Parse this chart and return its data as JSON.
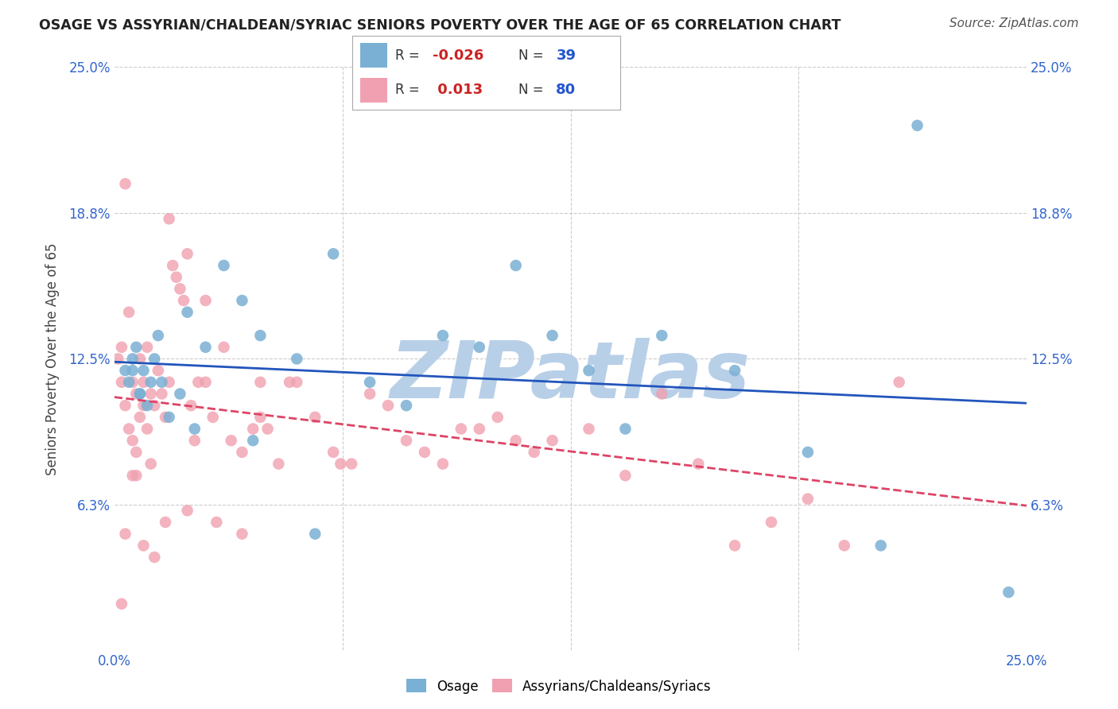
{
  "title": "OSAGE VS ASSYRIAN/CHALDEAN/SYRIAC SENIORS POVERTY OVER THE AGE OF 65 CORRELATION CHART",
  "source_text": "Source: ZipAtlas.com",
  "ylabel": "Seniors Poverty Over the Age of 65",
  "xlim": [
    0.0,
    25.0
  ],
  "ylim": [
    0.0,
    25.0
  ],
  "x_tick_labels": [
    "0.0%",
    "25.0%"
  ],
  "y_tick_values": [
    6.25,
    12.5,
    18.75,
    25.0
  ],
  "y_tick_labels": [
    "6.3%",
    "12.5%",
    "18.8%",
    "25.0%"
  ],
  "grid_color": "#cccccc",
  "background_color": "#ffffff",
  "watermark": "ZIPatlas",
  "watermark_color": "#b8cfe8",
  "legend_label_osage": "Osage",
  "legend_label_acs": "Assyrians/Chaldeans/Syriacs",
  "osage_color": "#7ab0d4",
  "acs_color": "#f0a0b0",
  "osage_line_color": "#2255bb",
  "acs_line_color": "#dd4466",
  "osage_R": -0.026,
  "acs_R": 0.013,
  "osage_N": 39,
  "acs_N": 80,
  "osage_x": [
    0.3,
    0.4,
    0.5,
    0.6,
    0.7,
    0.8,
    0.9,
    1.0,
    1.1,
    1.2,
    1.5,
    1.8,
    2.0,
    2.5,
    3.0,
    3.5,
    4.0,
    5.0,
    6.0,
    7.0,
    8.0,
    9.0,
    10.0,
    11.0,
    12.0,
    13.0,
    14.0,
    15.0,
    17.0,
    19.0,
    21.0,
    22.0,
    0.5,
    0.7,
    1.3,
    2.2,
    3.8,
    5.5,
    24.5
  ],
  "osage_y": [
    12.0,
    11.5,
    12.5,
    13.0,
    11.0,
    12.0,
    10.5,
    11.5,
    12.5,
    13.5,
    10.0,
    11.0,
    14.5,
    13.0,
    16.5,
    15.0,
    13.5,
    12.5,
    17.0,
    11.5,
    10.5,
    13.5,
    13.0,
    16.5,
    13.5,
    12.0,
    9.5,
    13.5,
    12.0,
    8.5,
    4.5,
    22.5,
    12.0,
    11.0,
    11.5,
    9.5,
    9.0,
    5.0,
    2.5
  ],
  "acs_x": [
    0.1,
    0.2,
    0.2,
    0.3,
    0.3,
    0.4,
    0.4,
    0.5,
    0.5,
    0.6,
    0.6,
    0.7,
    0.7,
    0.8,
    0.8,
    0.9,
    0.9,
    1.0,
    1.0,
    1.1,
    1.2,
    1.3,
    1.4,
    1.5,
    1.6,
    1.7,
    1.8,
    1.9,
    2.0,
    2.1,
    2.2,
    2.3,
    2.5,
    2.7,
    3.0,
    3.2,
    3.5,
    3.8,
    4.0,
    4.2,
    4.5,
    5.0,
    5.5,
    6.0,
    6.5,
    7.0,
    7.5,
    8.0,
    8.5,
    9.0,
    9.5,
    10.0,
    10.5,
    11.0,
    11.5,
    12.0,
    13.0,
    14.0,
    15.0,
    16.0,
    17.0,
    18.0,
    19.0,
    20.0,
    0.3,
    0.5,
    0.8,
    1.1,
    1.4,
    2.0,
    2.8,
    3.5,
    4.8,
    6.2,
    0.2,
    0.6,
    1.5,
    2.5,
    4.0,
    21.5
  ],
  "acs_y": [
    12.5,
    13.0,
    11.5,
    10.5,
    20.0,
    9.5,
    14.5,
    11.5,
    9.0,
    11.0,
    8.5,
    10.0,
    12.5,
    11.5,
    10.5,
    9.5,
    13.0,
    11.0,
    8.0,
    10.5,
    12.0,
    11.0,
    10.0,
    18.5,
    16.5,
    16.0,
    15.5,
    15.0,
    17.0,
    10.5,
    9.0,
    11.5,
    15.0,
    10.0,
    13.0,
    9.0,
    8.5,
    9.5,
    10.0,
    9.5,
    8.0,
    11.5,
    10.0,
    8.5,
    8.0,
    11.0,
    10.5,
    9.0,
    8.5,
    8.0,
    9.5,
    9.5,
    10.0,
    9.0,
    8.5,
    9.0,
    9.5,
    7.5,
    11.0,
    8.0,
    4.5,
    5.5,
    6.5,
    4.5,
    5.0,
    7.5,
    4.5,
    4.0,
    5.5,
    6.0,
    5.5,
    5.0,
    11.5,
    8.0,
    2.0,
    7.5,
    11.5,
    11.5,
    11.5,
    11.5
  ]
}
